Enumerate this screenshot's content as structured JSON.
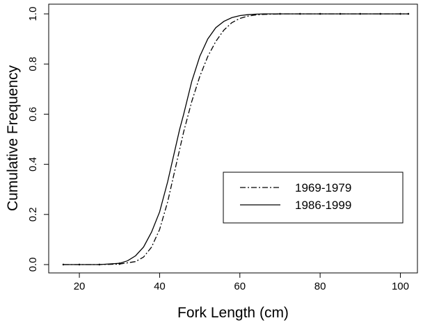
{
  "chart_data": {
    "type": "line",
    "title": "",
    "xlabel": "Fork Length (cm)",
    "ylabel": "Cumulative Frequency",
    "xlim": [
      13,
      105
    ],
    "ylim": [
      0,
      1
    ],
    "xticks": [
      20,
      40,
      60,
      80,
      100
    ],
    "yticks": [
      0.0,
      0.2,
      0.4,
      0.6,
      0.8,
      1.0
    ],
    "xtick_labels": [
      "20",
      "40",
      "60",
      "80",
      "100"
    ],
    "ytick_labels": [
      "0.0",
      "0.2",
      "0.4",
      "0.6",
      "0.8",
      "1.0"
    ],
    "grid": false,
    "legend_position": "center-right",
    "series": [
      {
        "name": "1969-1979",
        "style": "dashdot",
        "color": "#000000",
        "x": [
          16,
          20,
          25,
          30,
          34,
          36,
          38,
          40,
          42,
          44,
          45,
          46,
          48,
          50,
          52,
          54,
          56,
          58,
          60,
          62,
          64,
          66,
          68,
          70,
          75,
          80,
          85,
          90,
          95,
          100,
          102
        ],
        "y": [
          0.0,
          0.0,
          0.0,
          0.002,
          0.012,
          0.03,
          0.07,
          0.14,
          0.25,
          0.39,
          0.46,
          0.53,
          0.65,
          0.75,
          0.83,
          0.89,
          0.935,
          0.965,
          0.982,
          0.991,
          0.996,
          0.998,
          0.999,
          1.0,
          1.0,
          1.0,
          1.0,
          1.0,
          1.0,
          1.0,
          1.0
        ]
      },
      {
        "name": "1986-1999",
        "style": "solid",
        "color": "#000000",
        "x": [
          16,
          20,
          25,
          30,
          32,
          34,
          36,
          38,
          40,
          42,
          44,
          45,
          46,
          48,
          50,
          52,
          54,
          56,
          58,
          60,
          62,
          64,
          66,
          70,
          75,
          80,
          85,
          90,
          95,
          100,
          102
        ],
        "y": [
          0.0,
          0.0,
          0.0,
          0.005,
          0.015,
          0.035,
          0.07,
          0.13,
          0.21,
          0.33,
          0.47,
          0.54,
          0.6,
          0.73,
          0.83,
          0.9,
          0.945,
          0.97,
          0.985,
          0.993,
          0.997,
          0.999,
          1.0,
          1.0,
          1.0,
          1.0,
          1.0,
          1.0,
          1.0,
          1.0,
          1.0
        ]
      }
    ]
  }
}
